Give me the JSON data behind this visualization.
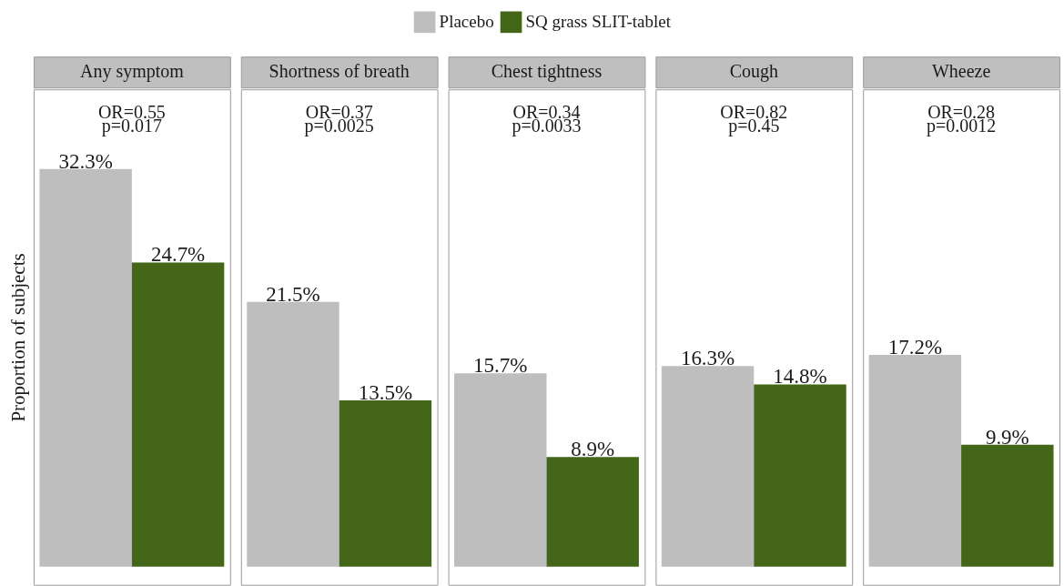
{
  "chart_data": [
    {
      "type": "bar",
      "title": "Any symptom",
      "ylabel": "Proportion of subjects",
      "categories": [
        null
      ],
      "series": [
        {
          "name": "Placebo",
          "color": "#bebebe",
          "values": [
            32.3
          ],
          "value_labels": [
            "32.3%"
          ]
        },
        {
          "name": "SQ grass SLIT-tablet",
          "color": "#436619",
          "values": [
            24.7
          ],
          "value_labels": [
            "24.7%"
          ]
        }
      ],
      "annotations": [
        "OR=0.55",
        "p=0.017"
      ],
      "legend": "top",
      "tick_labels": false
    },
    {
      "type": "bar",
      "title": "Shortness of breath",
      "categories": [
        null
      ],
      "series": [
        {
          "name": "Placebo",
          "color": "#bebebe",
          "values": [
            21.5
          ],
          "value_labels": [
            "21.5%"
          ]
        },
        {
          "name": "SQ grass SLIT-tablet",
          "color": "#436619",
          "values": [
            13.5
          ],
          "value_labels": [
            "13.5%"
          ]
        }
      ],
      "annotations": [
        "OR=0.37",
        "p=0.0025"
      ],
      "legend": "top",
      "tick_labels": false
    },
    {
      "type": "bar",
      "title": "Chest tightness",
      "categories": [
        null
      ],
      "series": [
        {
          "name": "Placebo",
          "color": "#bebebe",
          "values": [
            15.7
          ],
          "value_labels": [
            "15.7%"
          ]
        },
        {
          "name": "SQ grass SLIT-tablet",
          "color": "#436619",
          "values": [
            8.9
          ],
          "value_labels": [
            "8.9%"
          ]
        }
      ],
      "annotations": [
        "OR=0.34",
        "p=0.0033"
      ],
      "legend": "top",
      "tick_labels": false
    },
    {
      "type": "bar",
      "title": "Cough",
      "categories": [
        null
      ],
      "series": [
        {
          "name": "Placebo",
          "color": "#bebebe",
          "values": [
            16.3
          ],
          "value_labels": [
            "16.3%"
          ]
        },
        {
          "name": "SQ grass SLIT-tablet",
          "color": "#436619",
          "values": [
            14.8
          ],
          "value_labels": [
            "14.8%"
          ]
        }
      ],
      "annotations": [
        "OR=0.82",
        "p=0.45"
      ],
      "legend": "top",
      "tick_labels": false
    },
    {
      "type": "bar",
      "title": "Wheeze",
      "categories": [
        null
      ],
      "series": [
        {
          "name": "Placebo",
          "color": "#bebebe",
          "values": [
            17.2
          ],
          "value_labels": [
            "17.2%"
          ]
        },
        {
          "name": "SQ grass SLIT-tablet",
          "color": "#436619",
          "values": [
            9.9
          ],
          "value_labels": [
            "9.9%"
          ]
        }
      ],
      "annotations": [
        "OR=0.28",
        "p=0.0012"
      ],
      "legend": "top",
      "tick_labels": false
    }
  ]
}
